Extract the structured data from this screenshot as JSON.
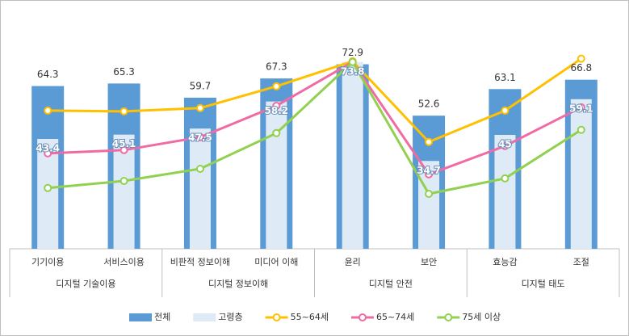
{
  "chart_data": {
    "type": "bar-line",
    "groups": [
      {
        "name": "디지털 기술이용",
        "categories": [
          "기기이용",
          "서비스이용"
        ]
      },
      {
        "name": "디지털 정보이해",
        "categories": [
          "비판적 정보이해",
          "미디어 이해"
        ]
      },
      {
        "name": "디지털 안전",
        "categories": [
          "윤리",
          "보안"
        ]
      },
      {
        "name": "디지털 태도",
        "categories": [
          "효능감",
          "조절"
        ]
      }
    ],
    "ylim": [
      0,
      90
    ],
    "series": [
      {
        "name": "전체",
        "kind": "bar",
        "color": "#5b9bd5",
        "values": [
          64.3,
          65.3,
          59.7,
          67.3,
          72.9,
          52.6,
          63.1,
          66.8
        ]
      },
      {
        "name": "고령층",
        "kind": "bar",
        "color": "#deebf7",
        "values": [
          43.4,
          45.1,
          47.5,
          58.2,
          73.8,
          34.7,
          45.0,
          59.1
        ]
      },
      {
        "name": "55~64세",
        "kind": "line",
        "color": "#ffc000",
        "values": [
          54.6,
          54.3,
          55.6,
          64.2,
          74.1,
          42.2,
          54.6,
          75.1
        ]
      },
      {
        "name": "65~74세",
        "kind": "line",
        "color": "#f06ba3",
        "values": [
          37.7,
          39.0,
          44.1,
          56.5,
          73.8,
          29.4,
          40.6,
          55.9
        ]
      },
      {
        "name": "75세 이상",
        "kind": "line",
        "color": "#92d050",
        "values": [
          24.0,
          26.8,
          31.6,
          45.7,
          73.8,
          21.7,
          27.8,
          47.0
        ]
      }
    ]
  }
}
